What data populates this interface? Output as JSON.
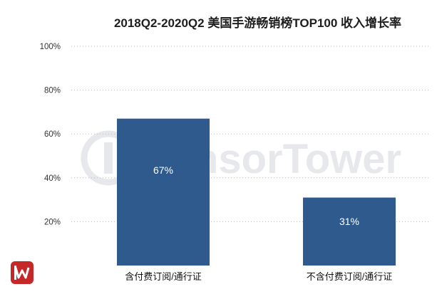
{
  "title": "2018Q2-2020Q2 美国手游畅销榜TOP100 收入增长率",
  "watermark": "SensorTower",
  "colors": {
    "bar": "#2e5a8e",
    "grid": "#bdbdbd",
    "logo": "#c62828"
  },
  "chart_data": {
    "type": "bar",
    "title": "2018Q2-2020Q2 美国手游畅销榜TOP100 收入增长率",
    "categories": [
      "含付费订阅/通行证",
      "不含付费订阅/通行证"
    ],
    "values": [
      67,
      31
    ],
    "value_labels": [
      "67%",
      "31%"
    ],
    "yticks": [
      {
        "value": 20,
        "label": "20%"
      },
      {
        "value": 40,
        "label": "40%"
      },
      {
        "value": 60,
        "label": "60%"
      },
      {
        "value": 80,
        "label": "80%"
      },
      {
        "value": 100,
        "label": "100%"
      }
    ],
    "ylim": [
      0,
      100
    ],
    "grid": true,
    "legend": "none"
  }
}
